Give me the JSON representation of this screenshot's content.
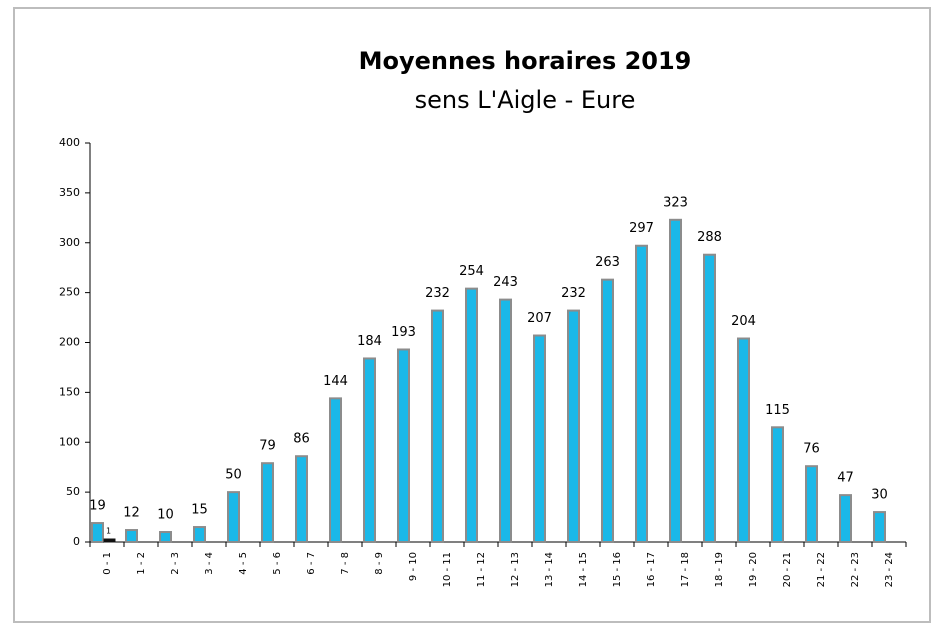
{
  "chart_data": {
    "type": "bar",
    "title": "Moyennes horaires 2019",
    "subtitle": "sens L'Aigle - Eure",
    "categories": [
      "0 - 1",
      "1 - 2",
      "2 - 3",
      "3 - 4",
      "4 - 5",
      "5 - 6",
      "6 - 7",
      "7 - 8",
      "8 - 9",
      "9 - 10",
      "10 - 11",
      "11 - 12",
      "12 - 13",
      "13 - 14",
      "14 - 15",
      "15 - 16",
      "16 - 17",
      "17 - 18",
      "18 - 19",
      "19 - 20",
      "20 - 21",
      "21 - 22",
      "22 - 23",
      "23 - 24"
    ],
    "series": [
      {
        "color": "#1ab8e8",
        "values": [
          19,
          12,
          10,
          15,
          50,
          79,
          86,
          144,
          184,
          193,
          232,
          254,
          243,
          207,
          232,
          263,
          297,
          323,
          288,
          204,
          115,
          76,
          47,
          30
        ]
      },
      {
        "color": "#111111",
        "values": [
          1,
          null,
          null,
          null,
          null,
          null,
          null,
          null,
          null,
          null,
          null,
          null,
          null,
          null,
          null,
          null,
          null,
          null,
          null,
          null,
          null,
          null,
          null,
          null
        ]
      }
    ],
    "ylim": [
      0,
      400
    ],
    "yticks": [
      0,
      50,
      100,
      150,
      200,
      250,
      300,
      350,
      400
    ],
    "grid": false
  }
}
